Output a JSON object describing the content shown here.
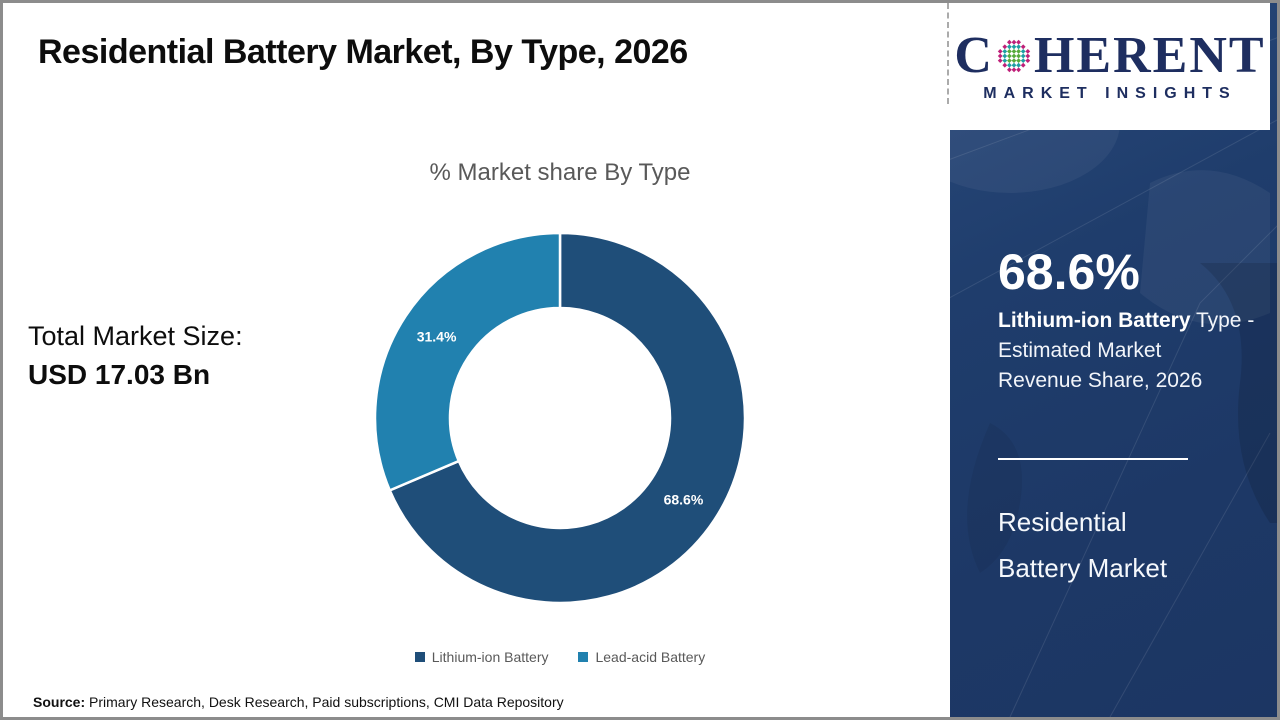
{
  "header": {
    "title": "Residential Battery Market, By Type, 2026"
  },
  "logo": {
    "c": "C",
    "rest": "HERENT",
    "subtitle": "MARKET INSIGHTS",
    "globe_icon_colors": {
      "center": "#57ab3c",
      "mid": "#1f9fa4",
      "outer": "#bf2079"
    }
  },
  "left_panel": {
    "total_label": "Total Market Size:",
    "total_value": "USD 17.03 Bn"
  },
  "chart_data": {
    "type": "pie",
    "donut": true,
    "title": "% Market share By Type",
    "start_angle_deg": 0,
    "direction": "clockwise",
    "legend_position": "bottom",
    "series": [
      {
        "name": "Lithium-ion Battery",
        "value": 68.6,
        "label": "68.6%",
        "color": "#1F4E79"
      },
      {
        "name": "Lead-acid Battery",
        "value": 31.4,
        "label": "31.4%",
        "color": "#2181AF"
      }
    ]
  },
  "sidebar": {
    "stat_value": "68.6%",
    "stat_line1_bold": "Lithium-ion Battery",
    "stat_line1_rest": " Type -",
    "stat_line2": "Estimated Market",
    "stat_line3": "Revenue Share, 2026",
    "product_line1": "Residential",
    "product_line2": "Battery Market",
    "background_color": "#1E3A68"
  },
  "footer": {
    "source_label": "Source:",
    "source_text": " Primary Research, Desk Research, Paid subscriptions, CMI Data Repository"
  }
}
